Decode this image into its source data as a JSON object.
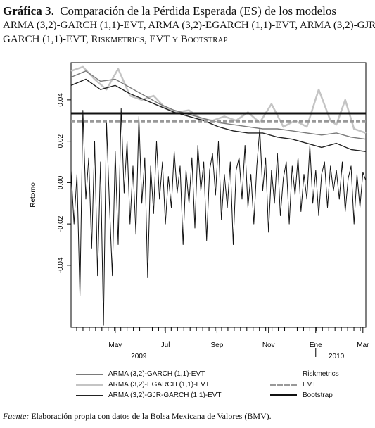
{
  "figure": {
    "label": "Gráfica 3",
    "title_line1": "Comparación de la Pérdida Esperada (ES) de los modelos",
    "title_line2": "ARMA (3,2)-GARCH (1,1)-EVT, ARMA (3,2)-EGARCH (1,1)-EVT, ARMA (3,2)-GJR-",
    "title_line3": "GARCH (1,1)-EVT, Riskmetrics, EVT y Bootstrap"
  },
  "source": {
    "prefix": "Fuente:",
    "text": "Elaboración propia con datos de la Bolsa Mexicana de Valores (BMV)."
  },
  "chart_data": {
    "type": "line",
    "ylabel": "Retorno",
    "ylim": [
      -0.07,
      0.058
    ],
    "yticks": [
      "0.04",
      "0.02",
      "0.00",
      "-0.02",
      "-0.04"
    ],
    "ytick_values": [
      0.04,
      0.02,
      0.0,
      -0.02,
      -0.04
    ],
    "xlim": [
      0,
      1
    ],
    "month_ticks": [
      "May",
      "Jul",
      "Sep",
      "Nov",
      "Ene",
      "Mar"
    ],
    "month_tick_positions": [
      0.15,
      0.32,
      0.495,
      0.67,
      0.83,
      0.99
    ],
    "year_labels": [
      "2009",
      "2010"
    ],
    "year_label_positions": [
      0.23,
      0.9
    ],
    "year_separator_position": 0.83,
    "legend_position": "bottom",
    "series": [
      {
        "name": "ARMA (3,2)-GARCH (1,1)-EVT",
        "color": "#7a7a7a",
        "style": "solid-medium",
        "x": [
          0.0,
          0.05,
          0.1,
          0.15,
          0.2,
          0.25,
          0.3,
          0.35,
          0.4,
          0.45,
          0.5,
          0.55,
          0.6,
          0.65,
          0.7,
          0.75,
          0.8,
          0.85,
          0.9,
          0.95,
          1.0
        ],
        "y": [
          0.051,
          0.054,
          0.049,
          0.05,
          0.046,
          0.042,
          0.038,
          0.035,
          0.033,
          0.031,
          0.029,
          0.028,
          0.027,
          0.026,
          0.026,
          0.025,
          0.024,
          0.023,
          0.024,
          0.022,
          0.021
        ]
      },
      {
        "name": "ARMA (3,2)-EGARCH (1,1)-EVT",
        "color": "#c4c4c4",
        "style": "solid-thick",
        "x": [
          0.0,
          0.04,
          0.08,
          0.12,
          0.16,
          0.2,
          0.24,
          0.28,
          0.32,
          0.36,
          0.4,
          0.44,
          0.48,
          0.52,
          0.56,
          0.6,
          0.64,
          0.68,
          0.72,
          0.76,
          0.8,
          0.84,
          0.88,
          0.9,
          0.93,
          0.96,
          1.0
        ],
        "y": [
          0.054,
          0.056,
          0.05,
          0.045,
          0.055,
          0.042,
          0.04,
          0.042,
          0.036,
          0.034,
          0.035,
          0.031,
          0.03,
          0.032,
          0.03,
          0.034,
          0.029,
          0.038,
          0.027,
          0.03,
          0.027,
          0.045,
          0.03,
          0.028,
          0.04,
          0.026,
          0.024
        ]
      },
      {
        "name": "ARMA (3,2)-GJR-GARCH (1,1)-EVT",
        "color": "#222222",
        "style": "solid-medium",
        "x": [
          0.0,
          0.05,
          0.1,
          0.15,
          0.2,
          0.25,
          0.3,
          0.35,
          0.4,
          0.45,
          0.5,
          0.55,
          0.6,
          0.65,
          0.7,
          0.75,
          0.8,
          0.85,
          0.9,
          0.95,
          1.0
        ],
        "y": [
          0.047,
          0.05,
          0.045,
          0.047,
          0.043,
          0.04,
          0.037,
          0.034,
          0.032,
          0.03,
          0.027,
          0.025,
          0.024,
          0.024,
          0.022,
          0.021,
          0.019,
          0.017,
          0.019,
          0.016,
          0.015
        ]
      },
      {
        "name": "Riskmetrics",
        "color": "#111111",
        "style": "solid-thin",
        "x": [
          0.0,
          0.01,
          0.02,
          0.03,
          0.04,
          0.05,
          0.06,
          0.07,
          0.08,
          0.09,
          0.1,
          0.11,
          0.12,
          0.13,
          0.14,
          0.15,
          0.16,
          0.17,
          0.18,
          0.19,
          0.2,
          0.21,
          0.22,
          0.23,
          0.24,
          0.25,
          0.26,
          0.27,
          0.28,
          0.29,
          0.3,
          0.31,
          0.32,
          0.33,
          0.34,
          0.35,
          0.36,
          0.37,
          0.38,
          0.39,
          0.4,
          0.41,
          0.42,
          0.43,
          0.44,
          0.45,
          0.46,
          0.47,
          0.48,
          0.49,
          0.5,
          0.51,
          0.52,
          0.53,
          0.54,
          0.55,
          0.56,
          0.57,
          0.58,
          0.59,
          0.6,
          0.61,
          0.62,
          0.63,
          0.64,
          0.65,
          0.66,
          0.67,
          0.68,
          0.69,
          0.7,
          0.71,
          0.72,
          0.73,
          0.74,
          0.75,
          0.76,
          0.77,
          0.78,
          0.79,
          0.8,
          0.81,
          0.82,
          0.83,
          0.84,
          0.85,
          0.86,
          0.87,
          0.88,
          0.89,
          0.9,
          0.91,
          0.92,
          0.93,
          0.94,
          0.95,
          0.96,
          0.97,
          0.98,
          0.99,
          1.0
        ],
        "y": [
          0.006,
          -0.02,
          0.004,
          -0.055,
          0.035,
          -0.008,
          0.012,
          -0.032,
          0.02,
          -0.045,
          0.01,
          -0.069,
          0.03,
          -0.01,
          -0.045,
          0.015,
          -0.03,
          0.036,
          -0.005,
          0.02,
          -0.02,
          0.008,
          -0.025,
          0.032,
          -0.01,
          0.012,
          -0.046,
          0.008,
          -0.015,
          0.02,
          -0.008,
          0.01,
          -0.02,
          0.003,
          -0.012,
          0.015,
          -0.005,
          0.008,
          -0.03,
          0.006,
          -0.01,
          0.012,
          -0.022,
          0.018,
          -0.004,
          0.01,
          -0.028,
          0.006,
          0.014,
          -0.006,
          0.02,
          -0.018,
          0.004,
          -0.012,
          0.01,
          -0.03,
          0.006,
          0.012,
          -0.008,
          0.018,
          -0.012,
          0.004,
          -0.02,
          0.008,
          0.026,
          -0.004,
          0.012,
          -0.024,
          0.006,
          -0.01,
          0.014,
          -0.016,
          0.002,
          0.01,
          -0.02,
          0.008,
          -0.006,
          0.012,
          -0.014,
          0.004,
          -0.008,
          0.018,
          -0.01,
          0.006,
          -0.016,
          0.004,
          0.01,
          -0.012,
          0.008,
          -0.004,
          0.006,
          -0.008,
          0.01,
          -0.014,
          0.002,
          0.008,
          -0.02,
          0.004,
          -0.012,
          0.005,
          0.001
        ]
      },
      {
        "name": "EVT",
        "color": "#999999",
        "style": "dashed-thick",
        "x": [
          0.0,
          1.0
        ],
        "y": [
          0.0295,
          0.0295
        ]
      },
      {
        "name": "Bootstrap",
        "color": "#111111",
        "style": "solid-bold",
        "x": [
          0.0,
          1.0
        ],
        "y": [
          0.0335,
          0.0335
        ]
      }
    ]
  }
}
